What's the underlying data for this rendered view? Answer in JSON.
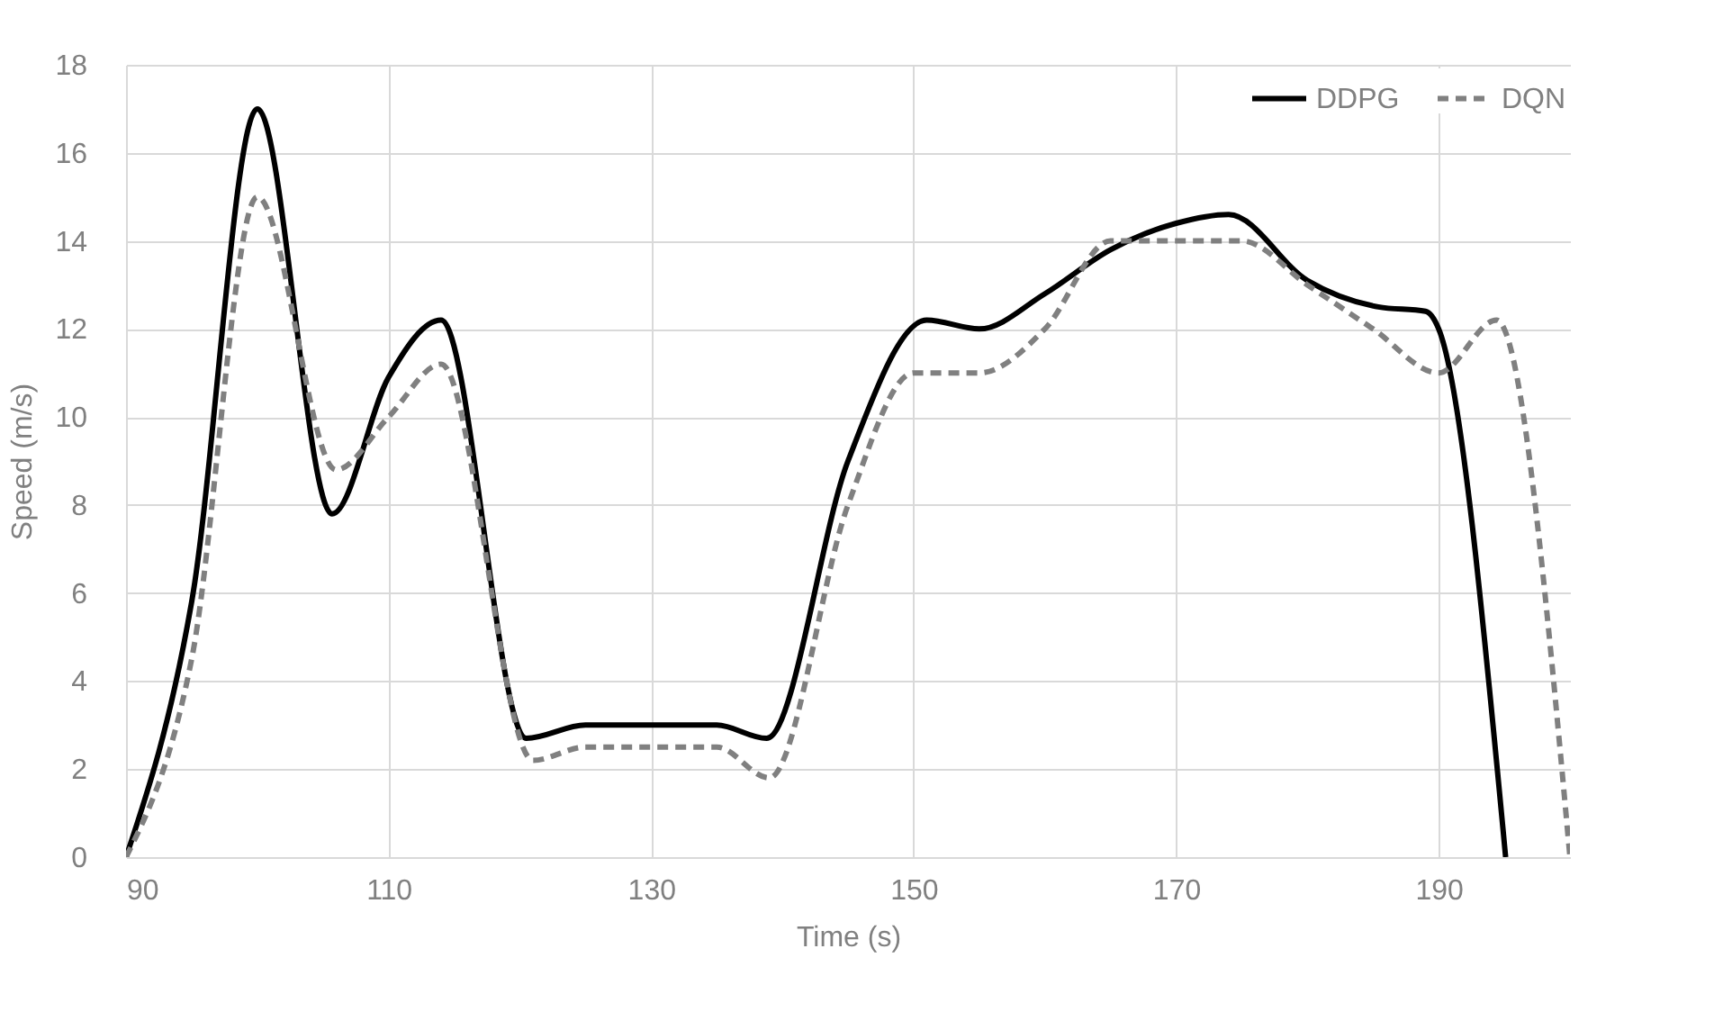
{
  "chart_data": {
    "type": "line",
    "xlabel": "Time (s)",
    "ylabel": "Speed (m/s)",
    "xlim": [
      90,
      200
    ],
    "xticks": [
      90,
      110,
      130,
      150,
      170,
      190
    ],
    "ylim": [
      0,
      18
    ],
    "yticks": [
      0,
      2,
      4,
      6,
      8,
      10,
      12,
      14,
      16,
      18
    ],
    "grid": true,
    "legend": "top right",
    "series": [
      {
        "name": "DDPG",
        "color": "#000000",
        "line_style": "solid",
        "x": [
          90,
          95,
          100,
          105.7,
          110,
          114,
          120.5,
          125,
          130,
          135,
          138.8,
          145,
          151,
          155,
          160,
          165,
          170,
          174,
          180,
          185.4,
          189,
          190,
          195.1
        ],
        "values": [
          0,
          5.8,
          17,
          7.8,
          10.9,
          12.2,
          2.7,
          3,
          3,
          3,
          2.7,
          9,
          12.2,
          12,
          12.8,
          13.8,
          14.4,
          14.6,
          13.1,
          12.5,
          12.4,
          12,
          0
        ]
      },
      {
        "name": "DQN",
        "color": "#808080",
        "line_style": "dashed",
        "x": [
          90,
          95,
          100,
          106,
          110,
          114,
          121,
          125,
          130,
          135,
          139,
          145,
          150,
          155,
          160,
          165,
          170,
          175,
          180,
          185,
          190,
          194.4,
          200
        ],
        "values": [
          0,
          4.5,
          15,
          8.8,
          10,
          11.2,
          2.2,
          2.5,
          2.5,
          2.5,
          1.8,
          8,
          11,
          11,
          12,
          14,
          14,
          14,
          13,
          12,
          11,
          12.2,
          0
        ]
      }
    ]
  }
}
